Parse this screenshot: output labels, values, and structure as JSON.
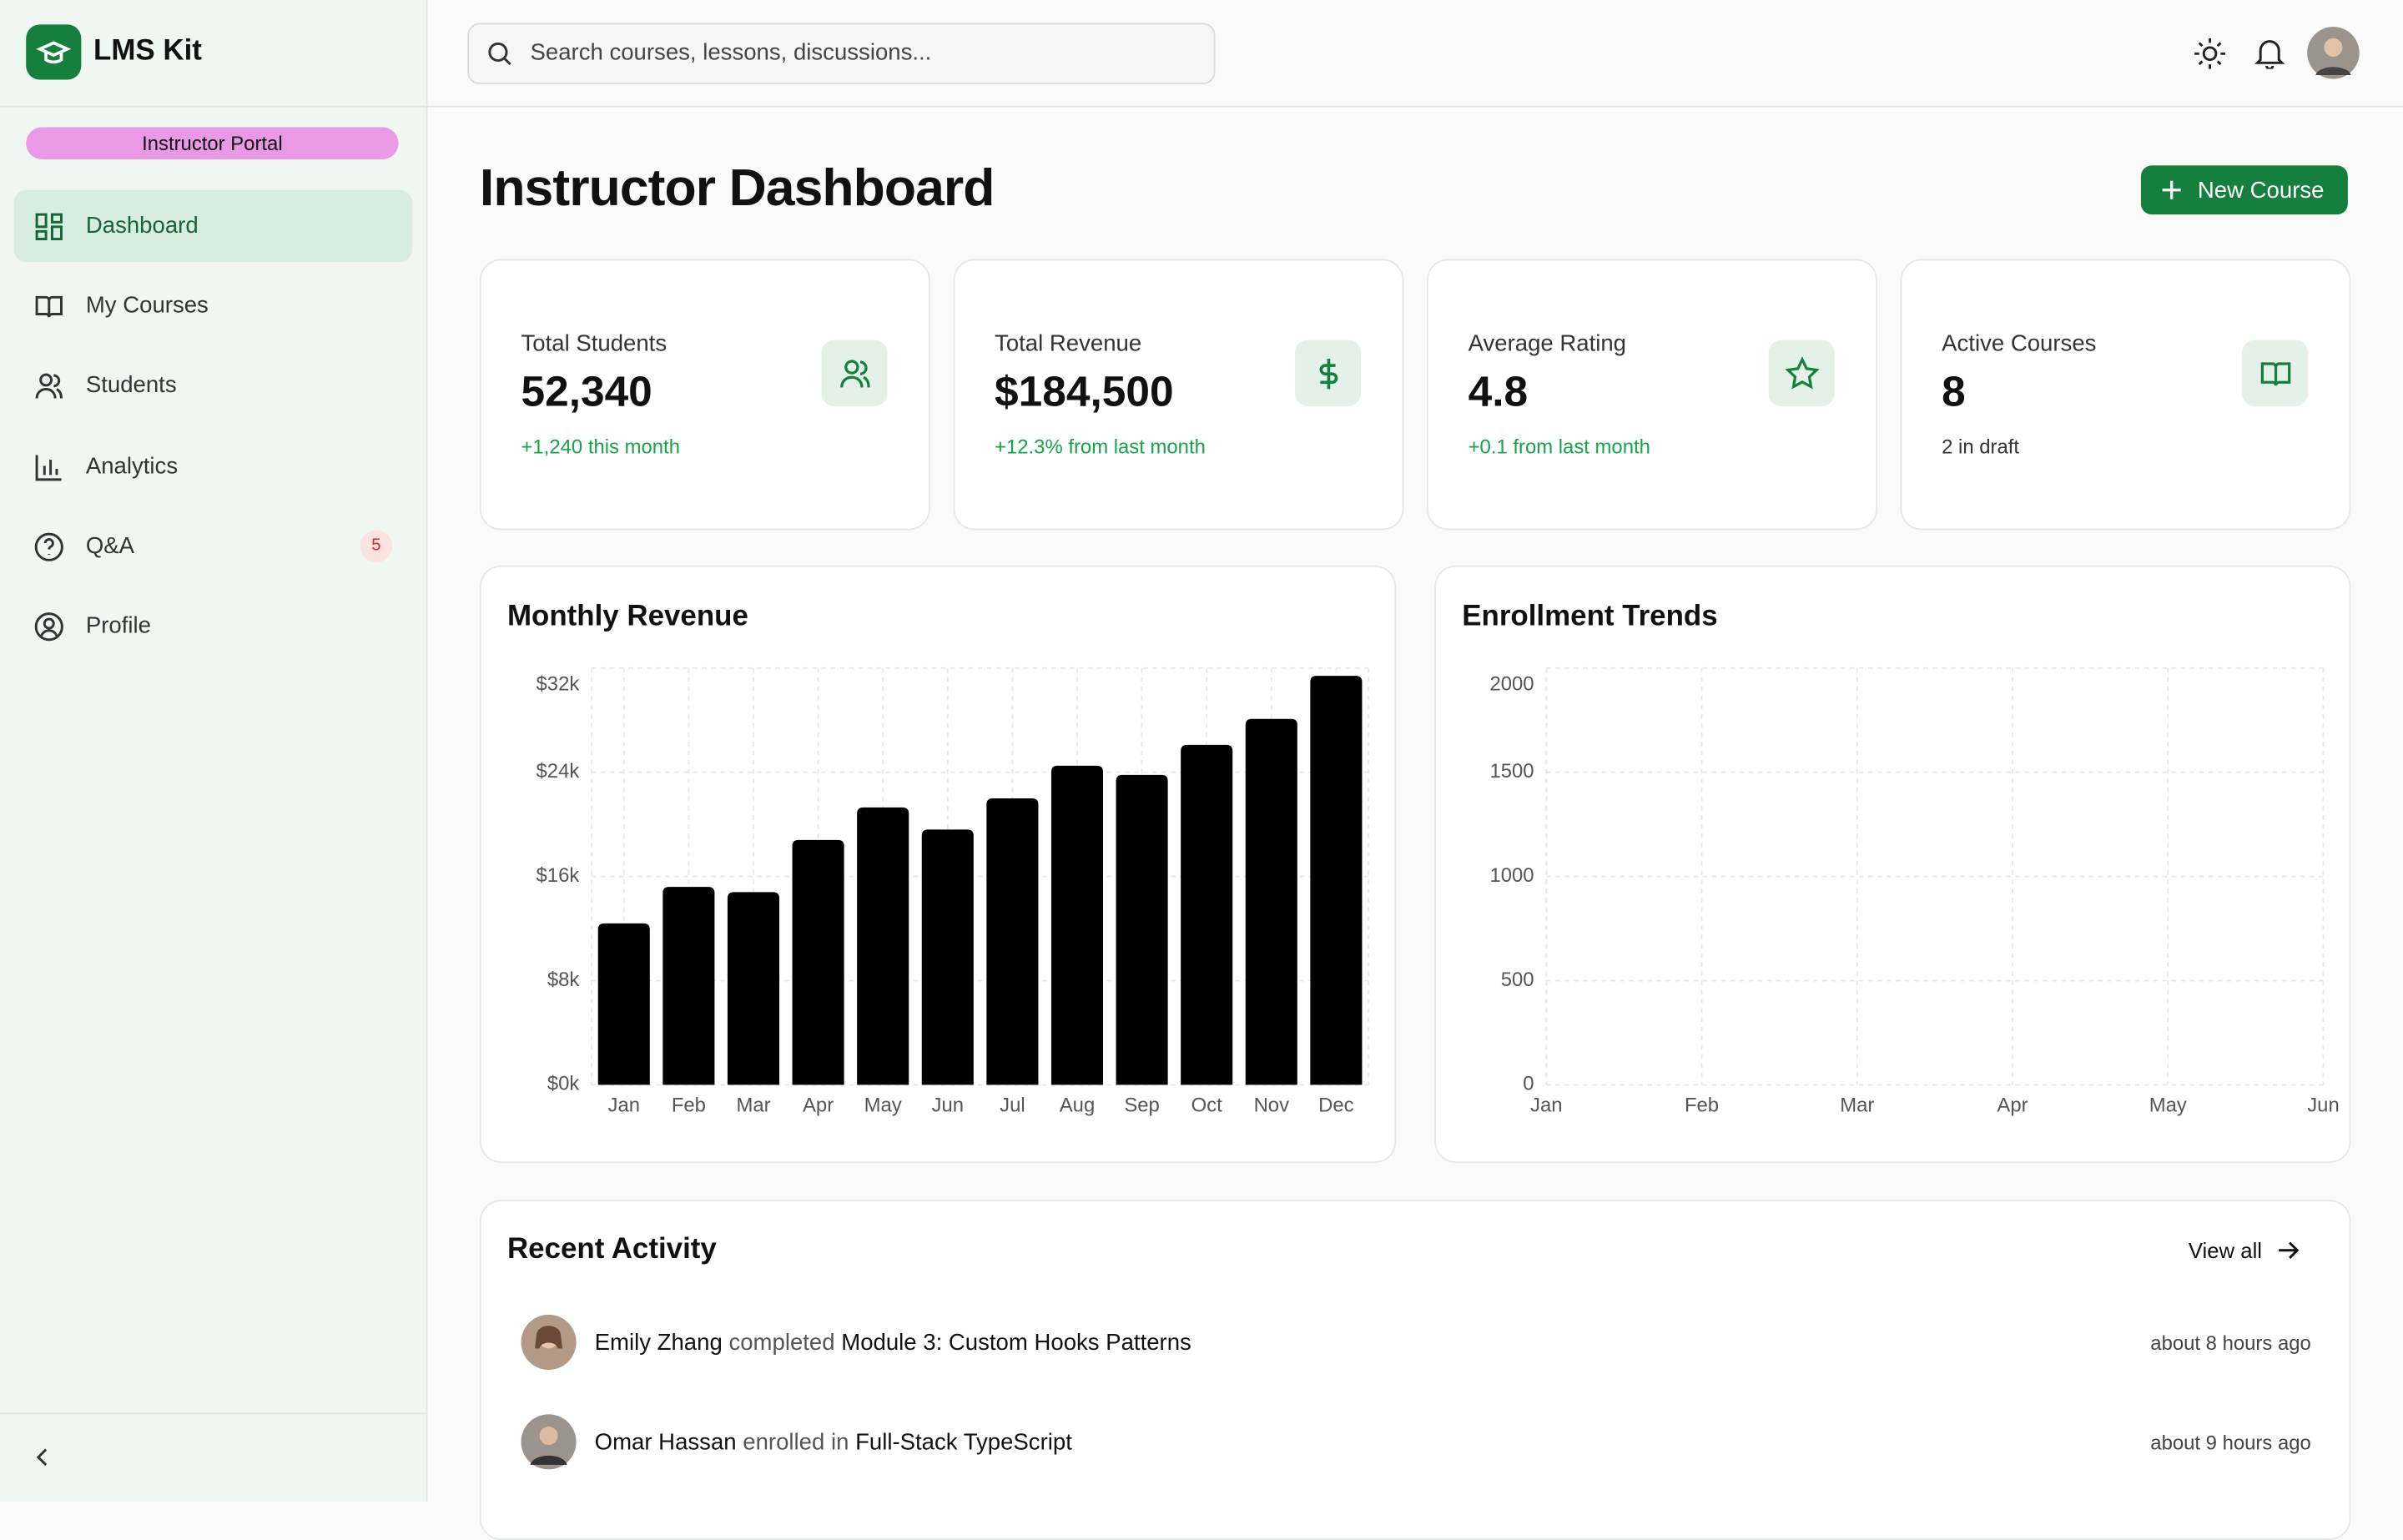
{
  "sidebar": {
    "brand": "LMS Kit",
    "portal": "Instructor Portal",
    "nav": [
      {
        "label": "Dashboard"
      },
      {
        "label": "My Courses"
      },
      {
        "label": "Students"
      },
      {
        "label": "Analytics"
      },
      {
        "label": "Q&A",
        "badge": 5
      },
      {
        "label": "Profile"
      }
    ]
  },
  "header": {
    "search_placeholder": "Search courses, lessons, discussions..."
  },
  "page": {
    "title": "Instructor Dashboard",
    "button": "New Course"
  },
  "stats": [
    {
      "label": "Total Students",
      "value": "52,340",
      "note": "+1,240 this month"
    },
    {
      "label": "Total Revenue",
      "value": "$184,500",
      "note": "+12.3% from last month"
    },
    {
      "label": "Average Rating",
      "value": "4.8",
      "note": "+0.1 from last month"
    },
    {
      "label": "Active Courses",
      "value": "8",
      "note": "2 in draft"
    }
  ],
  "chart_data": [
    {
      "type": "bar",
      "title": "Monthly Revenue",
      "categories": [
        "Jan",
        "Feb",
        "Mar",
        "Apr",
        "May",
        "Jun",
        "Jul",
        "Aug",
        "Sep",
        "Oct",
        "Nov",
        "Dec"
      ],
      "values": [
        12400,
        15200,
        14800,
        18800,
        21300,
        19600,
        22000,
        24500,
        23800,
        26100,
        28100,
        31400
      ],
      "color": "#000000",
      "ylim": [
        0,
        32000
      ],
      "yticks": [
        {
          "value": 0,
          "label": "$0k"
        },
        {
          "value": 8000,
          "label": "$8k"
        },
        {
          "value": 16000,
          "label": "$16k"
        },
        {
          "value": 24000,
          "label": "$24k"
        },
        {
          "value": 32000,
          "label": "$32k"
        }
      ],
      "grid": true
    },
    {
      "type": "line",
      "title": "Enrollment Trends",
      "categories": [
        "Jan",
        "Feb",
        "Mar",
        "Apr",
        "May",
        "Jun"
      ],
      "ylim": [
        0,
        2000
      ],
      "yticks": [
        0,
        500,
        1000,
        1500,
        2000
      ],
      "grid": true
    }
  ],
  "activity": {
    "title": "Recent Activity",
    "view_all": "View all",
    "items": [
      {
        "name": "Emily Zhang",
        "action": "completed",
        "target": "Module 3: Custom Hooks Patterns",
        "time": "about 8 hours ago"
      },
      {
        "name": "Omar Hassan",
        "action": "enrolled in",
        "target": "Full-Stack TypeScript",
        "time": "about 9 hours ago"
      }
    ]
  }
}
